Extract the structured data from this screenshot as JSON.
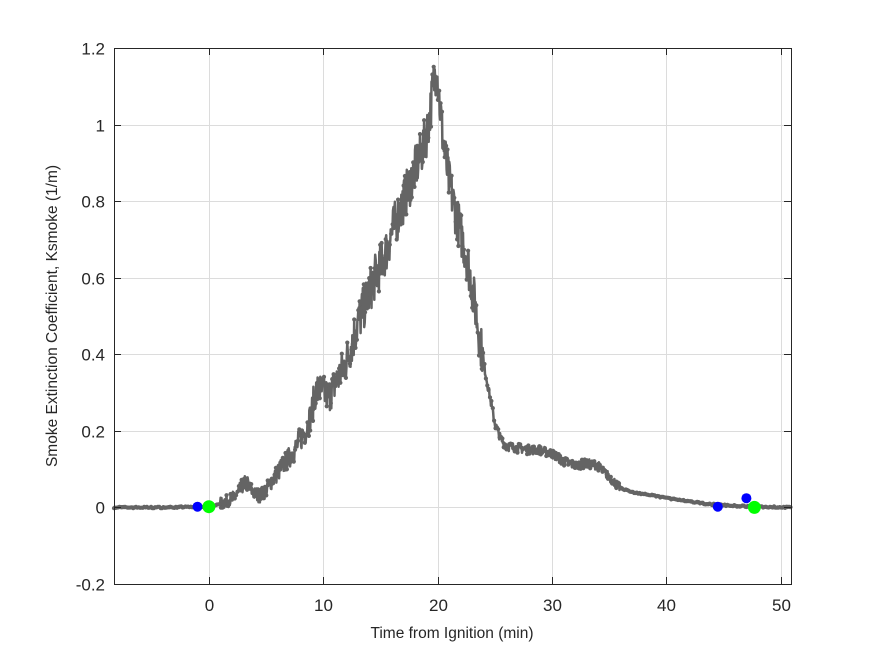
{
  "figure": {
    "background": "#ffffff",
    "axes_color": "#262626",
    "grid_color": "#dcdcdc"
  },
  "chart_data": {
    "type": "line",
    "title": "",
    "xlabel": "Time from Ignition (min)",
    "ylabel": "Smoke Extinction Coefficient, Ksmoke (1/m)",
    "xlim": [
      -8.3,
      50.9
    ],
    "ylim": [
      -0.2,
      1.2
    ],
    "xticks": [
      0,
      10,
      20,
      30,
      40,
      50
    ],
    "yticks": [
      -0.2,
      0,
      0.2,
      0.4,
      0.6,
      0.8,
      1,
      1.2
    ],
    "xtick_labels": [
      "0",
      "10",
      "20",
      "30",
      "40",
      "50"
    ],
    "ytick_labels": [
      "-0.2",
      "0",
      "0.2",
      "0.4",
      "0.6",
      "0.8",
      "1",
      "1.2"
    ],
    "grid": true,
    "legend": null,
    "series": [
      {
        "name": "Ksmoke",
        "color": "#646464",
        "marker": "dot",
        "x": [
          -8.3,
          -6,
          -4,
          -2,
          -1,
          0,
          0.5,
          1,
          1.5,
          2,
          2.5,
          3,
          3.3,
          3.6,
          4,
          4.5,
          5,
          5.5,
          6,
          6.5,
          7,
          7.5,
          8,
          8.5,
          9,
          9.3,
          9.6,
          10,
          10.5,
          11,
          11.5,
          12,
          12.5,
          13,
          13.5,
          14,
          14.5,
          15,
          15.5,
          16,
          16.5,
          17,
          17.5,
          18,
          18.5,
          19,
          19.3,
          19.6,
          19.9,
          20.2,
          20.5,
          21,
          21.5,
          22,
          22.5,
          23,
          23.5,
          24,
          24.5,
          25,
          25.5,
          26,
          27,
          28,
          29,
          30,
          31,
          32,
          33,
          34,
          35,
          36,
          37,
          38,
          40,
          42,
          44,
          46,
          48,
          50.9
        ],
        "y": [
          0.0,
          0.0,
          0.0,
          0.001,
          0.002,
          0.003,
          0.006,
          0.01,
          0.015,
          0.022,
          0.035,
          0.06,
          0.065,
          0.05,
          0.035,
          0.03,
          0.045,
          0.07,
          0.09,
          0.11,
          0.13,
          0.15,
          0.18,
          0.2,
          0.25,
          0.3,
          0.31,
          0.3,
          0.29,
          0.32,
          0.35,
          0.38,
          0.43,
          0.48,
          0.52,
          0.56,
          0.6,
          0.63,
          0.67,
          0.72,
          0.76,
          0.8,
          0.84,
          0.88,
          0.92,
          0.97,
          1.02,
          1.1,
          1.15,
          1.05,
          0.95,
          0.85,
          0.78,
          0.72,
          0.66,
          0.58,
          0.48,
          0.38,
          0.3,
          0.22,
          0.18,
          0.16,
          0.155,
          0.15,
          0.15,
          0.14,
          0.12,
          0.11,
          0.115,
          0.11,
          0.08,
          0.05,
          0.04,
          0.035,
          0.025,
          0.015,
          0.008,
          0.004,
          0.002,
          0.0
        ]
      },
      {
        "name": "Markers (blue)",
        "color": "#0000ff",
        "marker": "circle",
        "x": [
          -1.0,
          44.5,
          47.0
        ],
        "y": [
          0.002,
          0.002,
          0.024
        ]
      },
      {
        "name": "Markers (green)",
        "color": "#00ff00",
        "marker": "circle-large",
        "x": [
          0.0,
          47.7
        ],
        "y": [
          0.002,
          0.0
        ]
      }
    ]
  }
}
